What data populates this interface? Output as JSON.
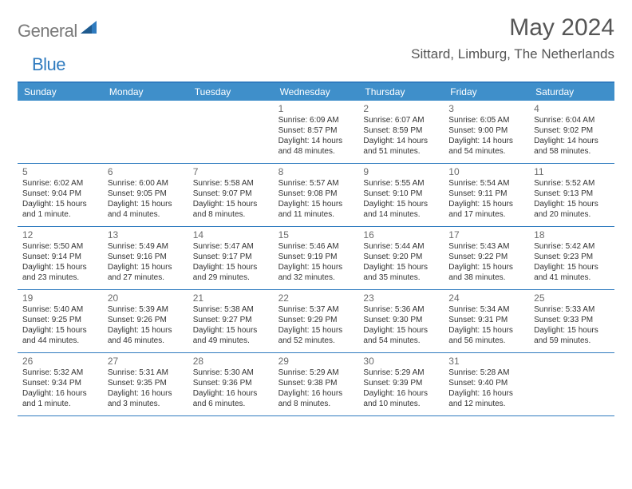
{
  "brand": {
    "part1": "General",
    "part2": "Blue"
  },
  "title": "May 2024",
  "location": "Sittard, Limburg, The Netherlands",
  "colors": {
    "header_bg": "#3f8fca",
    "border": "#2f7bbf",
    "text": "#333333",
    "muted": "#6b6b6b",
    "logo_gray": "#7a7a7a",
    "logo_blue": "#2f7bbf",
    "bg": "#ffffff"
  },
  "day_headers": [
    "Sunday",
    "Monday",
    "Tuesday",
    "Wednesday",
    "Thursday",
    "Friday",
    "Saturday"
  ],
  "weeks": [
    [
      null,
      null,
      null,
      {
        "n": "1",
        "sr": "6:09 AM",
        "ss": "8:57 PM",
        "dl": "14 hours and 48 minutes."
      },
      {
        "n": "2",
        "sr": "6:07 AM",
        "ss": "8:59 PM",
        "dl": "14 hours and 51 minutes."
      },
      {
        "n": "3",
        "sr": "6:05 AM",
        "ss": "9:00 PM",
        "dl": "14 hours and 54 minutes."
      },
      {
        "n": "4",
        "sr": "6:04 AM",
        "ss": "9:02 PM",
        "dl": "14 hours and 58 minutes."
      }
    ],
    [
      {
        "n": "5",
        "sr": "6:02 AM",
        "ss": "9:04 PM",
        "dl": "15 hours and 1 minute."
      },
      {
        "n": "6",
        "sr": "6:00 AM",
        "ss": "9:05 PM",
        "dl": "15 hours and 4 minutes."
      },
      {
        "n": "7",
        "sr": "5:58 AM",
        "ss": "9:07 PM",
        "dl": "15 hours and 8 minutes."
      },
      {
        "n": "8",
        "sr": "5:57 AM",
        "ss": "9:08 PM",
        "dl": "15 hours and 11 minutes."
      },
      {
        "n": "9",
        "sr": "5:55 AM",
        "ss": "9:10 PM",
        "dl": "15 hours and 14 minutes."
      },
      {
        "n": "10",
        "sr": "5:54 AM",
        "ss": "9:11 PM",
        "dl": "15 hours and 17 minutes."
      },
      {
        "n": "11",
        "sr": "5:52 AM",
        "ss": "9:13 PM",
        "dl": "15 hours and 20 minutes."
      }
    ],
    [
      {
        "n": "12",
        "sr": "5:50 AM",
        "ss": "9:14 PM",
        "dl": "15 hours and 23 minutes."
      },
      {
        "n": "13",
        "sr": "5:49 AM",
        "ss": "9:16 PM",
        "dl": "15 hours and 27 minutes."
      },
      {
        "n": "14",
        "sr": "5:47 AM",
        "ss": "9:17 PM",
        "dl": "15 hours and 29 minutes."
      },
      {
        "n": "15",
        "sr": "5:46 AM",
        "ss": "9:19 PM",
        "dl": "15 hours and 32 minutes."
      },
      {
        "n": "16",
        "sr": "5:44 AM",
        "ss": "9:20 PM",
        "dl": "15 hours and 35 minutes."
      },
      {
        "n": "17",
        "sr": "5:43 AM",
        "ss": "9:22 PM",
        "dl": "15 hours and 38 minutes."
      },
      {
        "n": "18",
        "sr": "5:42 AM",
        "ss": "9:23 PM",
        "dl": "15 hours and 41 minutes."
      }
    ],
    [
      {
        "n": "19",
        "sr": "5:40 AM",
        "ss": "9:25 PM",
        "dl": "15 hours and 44 minutes."
      },
      {
        "n": "20",
        "sr": "5:39 AM",
        "ss": "9:26 PM",
        "dl": "15 hours and 46 minutes."
      },
      {
        "n": "21",
        "sr": "5:38 AM",
        "ss": "9:27 PM",
        "dl": "15 hours and 49 minutes."
      },
      {
        "n": "22",
        "sr": "5:37 AM",
        "ss": "9:29 PM",
        "dl": "15 hours and 52 minutes."
      },
      {
        "n": "23",
        "sr": "5:36 AM",
        "ss": "9:30 PM",
        "dl": "15 hours and 54 minutes."
      },
      {
        "n": "24",
        "sr": "5:34 AM",
        "ss": "9:31 PM",
        "dl": "15 hours and 56 minutes."
      },
      {
        "n": "25",
        "sr": "5:33 AM",
        "ss": "9:33 PM",
        "dl": "15 hours and 59 minutes."
      }
    ],
    [
      {
        "n": "26",
        "sr": "5:32 AM",
        "ss": "9:34 PM",
        "dl": "16 hours and 1 minute."
      },
      {
        "n": "27",
        "sr": "5:31 AM",
        "ss": "9:35 PM",
        "dl": "16 hours and 3 minutes."
      },
      {
        "n": "28",
        "sr": "5:30 AM",
        "ss": "9:36 PM",
        "dl": "16 hours and 6 minutes."
      },
      {
        "n": "29",
        "sr": "5:29 AM",
        "ss": "9:38 PM",
        "dl": "16 hours and 8 minutes."
      },
      {
        "n": "30",
        "sr": "5:29 AM",
        "ss": "9:39 PM",
        "dl": "16 hours and 10 minutes."
      },
      {
        "n": "31",
        "sr": "5:28 AM",
        "ss": "9:40 PM",
        "dl": "16 hours and 12 minutes."
      },
      null
    ]
  ],
  "labels": {
    "sunrise": "Sunrise:",
    "sunset": "Sunset:",
    "daylight": "Daylight:"
  }
}
